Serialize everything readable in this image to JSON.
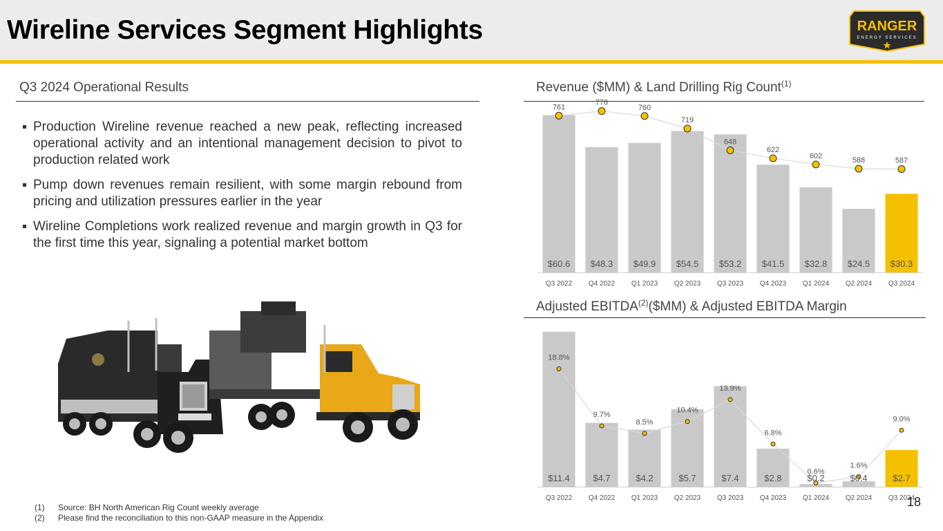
{
  "title": "Wireline Services Segment Highlights",
  "logo": {
    "brand": "RANGER",
    "tagline": "ENERGY SERVICES"
  },
  "left": {
    "heading": "Q3 2024 Operational Results",
    "bullets": [
      "Production Wireline revenue reached a new peak, reflecting increased operational activity and an intentional management decision to pivot to production related work",
      "Pump down revenues remain resilient, with some margin rebound from pricing and utilization pressures earlier in the year",
      "Wireline Completions work realized revenue and margin growth in Q3 for the first time this year, signaling a potential market bottom"
    ]
  },
  "revenue_heading": {
    "text": "Revenue ($MM) & Land Drilling Rig Count",
    "sup": "(1)"
  },
  "ebitda_heading": {
    "pre": "Adjusted EBITDA",
    "sup": "(2)",
    "post": "($MM) & Adjusted EBITDA Margin"
  },
  "colors": {
    "bar": "#c9c9c9",
    "highlight": "#f5c000",
    "marker": "#f5c000",
    "line": "#d9d9d9"
  },
  "chart_data": [
    {
      "type": "bar",
      "title": "Revenue ($MM) & Land Drilling Rig Count",
      "categories": [
        "Q3 2022",
        "Q4 2022",
        "Q1 2023",
        "Q2 2023",
        "Q3 2023",
        "Q4 2023",
        "Q1 2024",
        "Q2 2024",
        "Q3 2024"
      ],
      "series": [
        {
          "name": "Revenue ($MM)",
          "type": "bar",
          "values": [
            60.6,
            48.3,
            49.9,
            54.5,
            53.2,
            41.5,
            32.8,
            24.5,
            30.3
          ],
          "labels": [
            "$60.6",
            "$48.3",
            "$49.9",
            "$54.5",
            "$53.2",
            "$41.5",
            "$32.8",
            "$24.5",
            "$30.3"
          ]
        },
        {
          "name": "Land Drilling Rig Count",
          "type": "line",
          "values": [
            761,
            776,
            760,
            719,
            648,
            622,
            602,
            588,
            587
          ],
          "labels": [
            "761",
            "776",
            "760",
            "719",
            "648",
            "622",
            "602",
            "588",
            "587"
          ]
        }
      ],
      "bar_ylim": [
        0,
        65
      ],
      "line_ylim": [
        250,
        800
      ],
      "highlight_index": 8
    },
    {
      "type": "bar",
      "title": "Adjusted EBITDA ($MM) & Adjusted EBITDA Margin",
      "categories": [
        "Q3 2022",
        "Q4 2022",
        "Q1 2023",
        "Q2 2023",
        "Q3 2023",
        "Q4 2023",
        "Q1 2024",
        "Q2 2024",
        "Q3 2024"
      ],
      "series": [
        {
          "name": "Adjusted EBITDA ($MM)",
          "type": "bar",
          "values": [
            11.4,
            4.7,
            4.2,
            5.7,
            7.4,
            2.8,
            0.2,
            0.4,
            2.7
          ],
          "labels": [
            "$11.4",
            "$4.7",
            "$4.2",
            "$5.7",
            "$7.4",
            "$2.8",
            "$0.2",
            "$0.4",
            "$2.7"
          ]
        },
        {
          "name": "Adjusted EBITDA Margin",
          "type": "line",
          "values": [
            18.8,
            9.7,
            8.5,
            10.4,
            13.9,
            6.8,
            0.6,
            1.6,
            9.0
          ],
          "labels": [
            "18.8%",
            "9.7%",
            "8.5%",
            "10.4%",
            "13.9%",
            "6.8%",
            "0.6%",
            "1.6%",
            "9.0%"
          ]
        }
      ],
      "bar_ylim": [
        0,
        12
      ],
      "line_ylim": [
        0,
        26
      ],
      "highlight_index": 8
    }
  ],
  "footnotes": [
    {
      "num": "(1)",
      "text": "Source: BH North American Rig Count weekly average"
    },
    {
      "num": "(2)",
      "text": "Please find the reconciliation to this non-GAAP measure in the Appendix"
    }
  ],
  "page_number": "18"
}
